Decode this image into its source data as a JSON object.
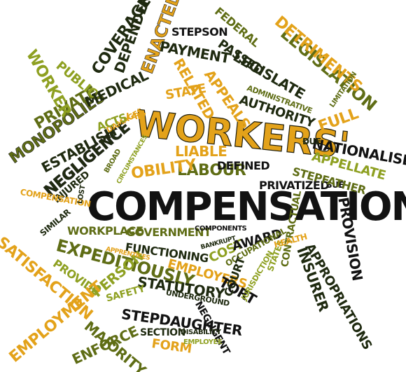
{
  "colors": {
    "dark": "#1f2a10",
    "olive": "#5f6d15",
    "lime": "#8ea021",
    "orange": "#e3a21a",
    "black": "#121212"
  },
  "words": [
    {
      "text": "WORKERS'",
      "color": "#e3a21a"
    },
    {
      "text": "COMPENSATION",
      "color": "#121212"
    },
    {
      "text": "LABOUR",
      "color": "#5f6d15"
    },
    {
      "text": "LIABLE",
      "color": "#e3a21a"
    },
    {
      "text": "DEFINED",
      "color": "#121212"
    },
    {
      "text": "PRIVATIZED",
      "color": "#121212"
    },
    {
      "text": "SUE",
      "color": "#121212"
    },
    {
      "text": "OBILITY",
      "color": "#e3a21a"
    },
    {
      "text": "STATE",
      "color": "#e3a21a"
    },
    {
      "text": "MONOPOLIES",
      "color": "#5f6d15"
    },
    {
      "text": "ESTABLISH",
      "color": "#1f2a10"
    },
    {
      "text": "PRIVATE",
      "color": "#5f6d15"
    },
    {
      "text": "MEDICAL",
      "color": "#1f2a10"
    },
    {
      "text": "WORKER",
      "color": "#8ea021"
    },
    {
      "text": "PUBLIC",
      "color": "#8ea021"
    },
    {
      "text": "COVERAGE",
      "color": "#1f2a10"
    },
    {
      "text": "DEPENDENTS",
      "color": "#1f2a10"
    },
    {
      "text": "ENACTED",
      "color": "#e3a21a"
    },
    {
      "text": "STEPSON",
      "color": "#121212"
    },
    {
      "text": "PAYMENT",
      "color": "#1f2a10"
    },
    {
      "text": "FEDERAL",
      "color": "#5f6d15"
    },
    {
      "text": "PASSED",
      "color": "#1f2a10"
    },
    {
      "text": "LEGISLATE",
      "color": "#1f2a10"
    },
    {
      "text": "LEGISLATION",
      "color": "#5f6d15"
    },
    {
      "text": "DETRIMENTS",
      "color": "#e3a21a"
    },
    {
      "text": "RELATED",
      "color": "#e3a21a"
    },
    {
      "text": "APPEALS",
      "color": "#e3a21a"
    },
    {
      "text": "ADMINISTRATIVE",
      "color": "#5f6d15"
    },
    {
      "text": "AUTHORITY",
      "color": "#1f2a10"
    },
    {
      "text": "FULL",
      "color": "#e3a21a"
    },
    {
      "text": "NATIONALISED",
      "color": "#121212"
    },
    {
      "text": "APPELLATE",
      "color": "#8ea021"
    },
    {
      "text": "STEPFATHER",
      "color": "#5f6d15"
    },
    {
      "text": "NEGLIGENCE",
      "color": "#1f2a10"
    },
    {
      "text": "INJURED",
      "color": "#1f2a10"
    },
    {
      "text": "COMPENSATION",
      "color": "#e3a21a"
    },
    {
      "text": "WORKPLACE",
      "color": "#5f6d15"
    },
    {
      "text": "GOVERNMENT",
      "color": "#5f6d15"
    },
    {
      "text": "COMPONENTS",
      "color": "#121212"
    },
    {
      "text": "SIMILAR",
      "color": "#1f2a10"
    },
    {
      "text": "SATISFACTION",
      "color": "#e3a21a"
    },
    {
      "text": "EXPEDITIOUSLY",
      "color": "#5f6d15"
    },
    {
      "text": "FUNCTIONING",
      "color": "#1f2a10"
    },
    {
      "text": "EMPLOYERS",
      "color": "#e3a21a"
    },
    {
      "text": "COST",
      "color": "#8ea021"
    },
    {
      "text": "AWARD",
      "color": "#121212"
    },
    {
      "text": "HEALTH",
      "color": "#e3a21a"
    },
    {
      "text": "OCCUPATIONAL",
      "color": "#5f6d15"
    },
    {
      "text": "PROVIDE",
      "color": "#8ea021"
    },
    {
      "text": "PERSON",
      "color": "#8ea021"
    },
    {
      "text": "STATUTORY",
      "color": "#1f2a10"
    },
    {
      "text": "TORT",
      "color": "#121212"
    },
    {
      "text": "SAFETY",
      "color": "#8ea021"
    },
    {
      "text": "UNDERGROUND",
      "color": "#1f2a10"
    },
    {
      "text": "STEPDAUGHTER",
      "color": "#121212"
    },
    {
      "text": "EMPLOYMENT",
      "color": "#e3a21a"
    },
    {
      "text": "ENFORCE",
      "color": "#5f6d15"
    },
    {
      "text": "MAJORITY",
      "color": "#5f6d15"
    },
    {
      "text": "SECTION",
      "color": "#1f2a10"
    },
    {
      "text": "FORM",
      "color": "#e3a21a"
    },
    {
      "text": "DISABILITY",
      "color": "#1f2a10"
    },
    {
      "text": "EMPLOYEE",
      "color": "#8ea021"
    },
    {
      "text": "NEGLIGENT",
      "color": "#121212"
    },
    {
      "text": "COURT",
      "color": "#1f2a10"
    },
    {
      "text": "JURISDICTION",
      "color": "#8ea021"
    },
    {
      "text": "CONTRACTUAL",
      "color": "#5f6d15"
    },
    {
      "text": "INSURER",
      "color": "#1f2a10"
    },
    {
      "text": "APPROPRIATIONS",
      "color": "#1f2a10"
    },
    {
      "text": "PROVISION",
      "color": "#121212"
    },
    {
      "text": "STATES",
      "color": "#8ea021"
    },
    {
      "text": "DAMAGES",
      "color": "#e3a21a"
    },
    {
      "text": "ACTS",
      "color": "#8ea021"
    },
    {
      "text": "LAW",
      "color": "#e3a21a"
    },
    {
      "text": "LIMITATION",
      "color": "#5f6d15"
    },
    {
      "text": "DUE",
      "color": "#1f2a10"
    },
    {
      "text": "BROAD",
      "color": "#5f6d15"
    },
    {
      "text": "CIRCUMSTANCES",
      "color": "#8ea021"
    },
    {
      "text": "APPRENTICES",
      "color": "#e3a21a"
    },
    {
      "text": "BANKRUPT",
      "color": "#1f2a10"
    },
    {
      "text": "LOST",
      "color": "#1f2a10"
    }
  ]
}
